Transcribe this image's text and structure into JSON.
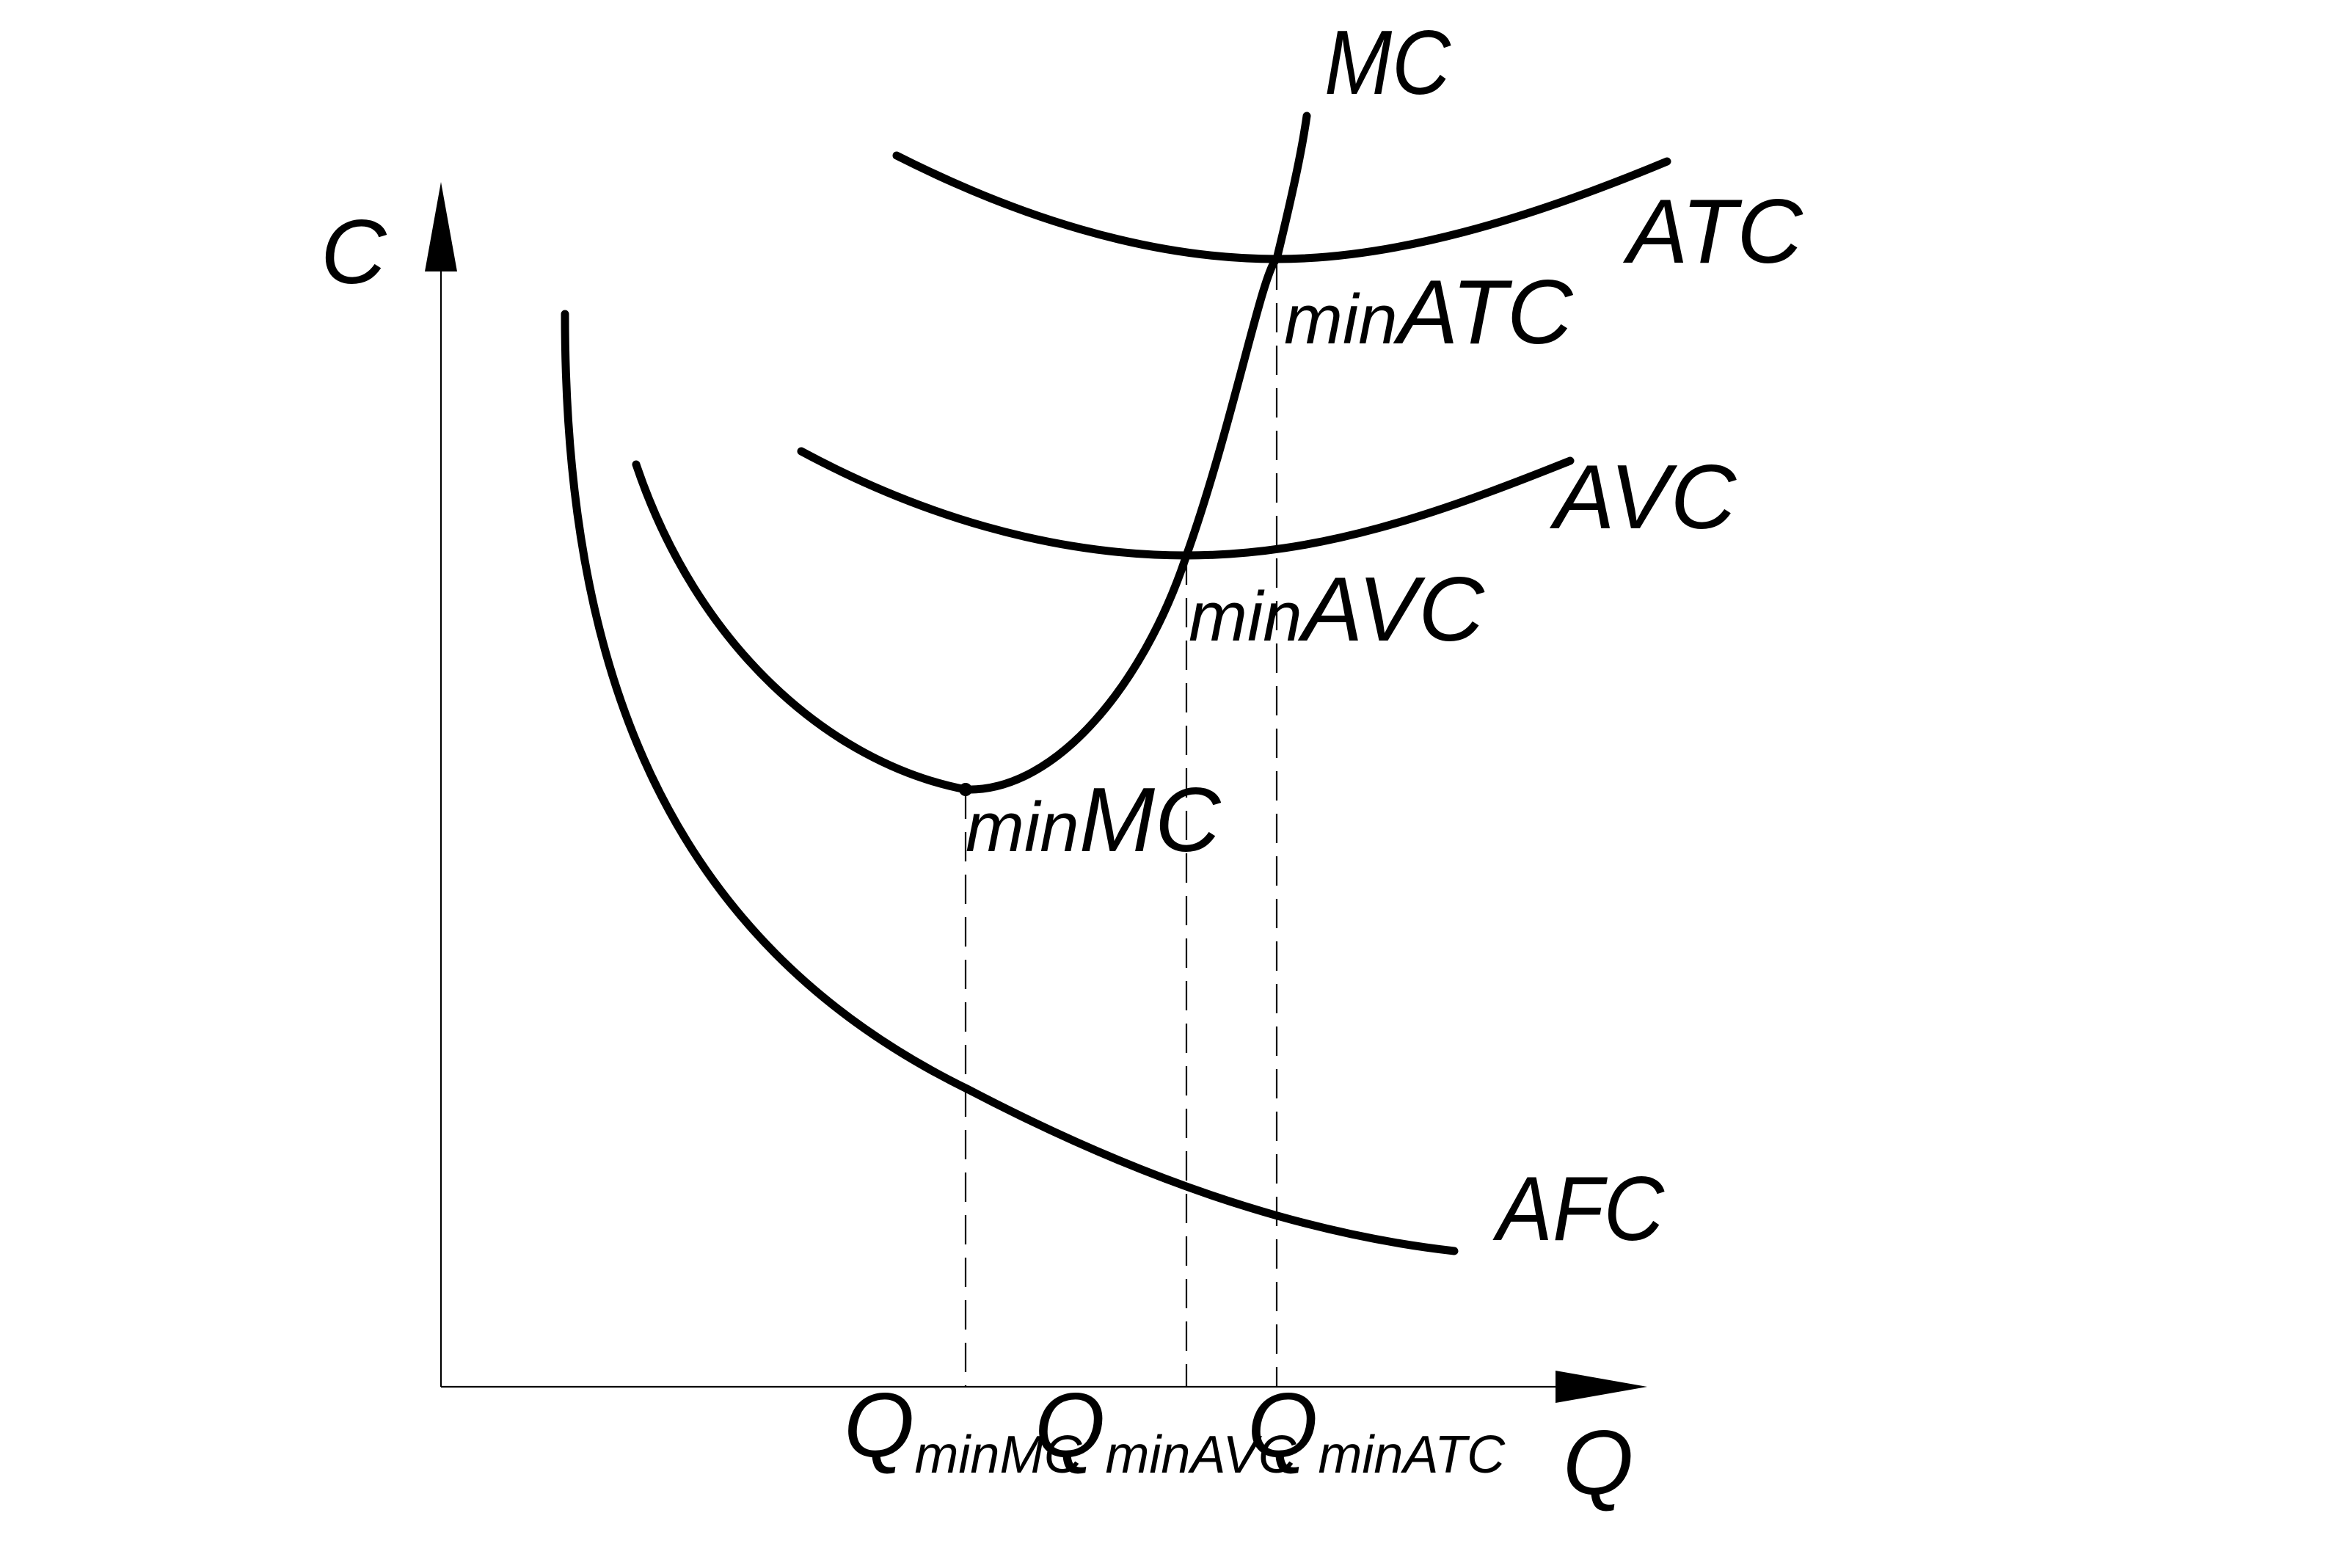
{
  "diagram": {
    "axes": {
      "y_label": "C",
      "x_label": "Q"
    },
    "curves": {
      "mc": "MC",
      "atc": "ATC",
      "avc": "AVC",
      "afc": "AFC"
    },
    "points": {
      "min_atc": {
        "prefix": "min",
        "suffix": "ATC"
      },
      "min_avc": {
        "prefix": "min",
        "suffix": "AVC"
      },
      "min_mc": {
        "prefix": "min",
        "suffix": "MC"
      }
    },
    "x_ticks": {
      "q_min_mc": {
        "main": "Q",
        "sub": "minMC"
      },
      "q_min_avc": {
        "main": "Q",
        "sub": "minAVC"
      },
      "q_min_atc": {
        "main": "Q",
        "sub": "minATC"
      }
    },
    "colors": {
      "ink": "#000000",
      "background": "#ffffff"
    }
  }
}
